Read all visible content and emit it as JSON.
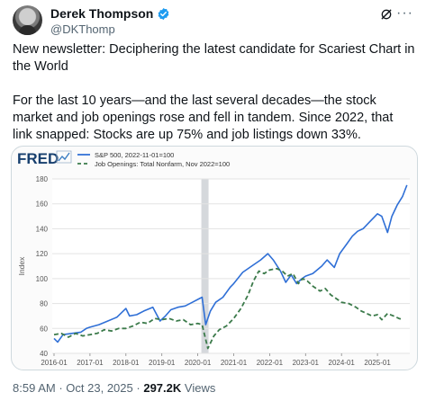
{
  "author": {
    "name": "Derek Thompson",
    "handle": "@DKThomp"
  },
  "tweet": {
    "paragraph1": "New newsletter: Deciphering the latest candidate for Scariest Chart in the World",
    "paragraph2": "For the last 10 years—and the last several decades—the stock market and job openings rose and fell in tandem. Since 2022, that link snapped: Stocks are up 75% and job listings down 33%."
  },
  "meta": {
    "time": "8:59 AM",
    "separator": "·",
    "date": "Oct 23, 2025",
    "views_count": "297.2K",
    "views_label": "Views"
  },
  "colors": {
    "verified": "#1d9bf0",
    "sp500": "#2f6fd6",
    "job_openings": "#3b7a4a",
    "recession": "#d5d8dc",
    "fred_text": "#173f6e"
  },
  "icons": {
    "verified": "verified-badge-icon",
    "grok": "grok-icon",
    "more": "more-icon",
    "fred_logo_chart": "fred-chart-icon"
  },
  "chart_data": {
    "type": "line",
    "brand": "FRED",
    "ylabel": "Index",
    "ylim": [
      40,
      180
    ],
    "yticks": [
      40,
      60,
      80,
      100,
      120,
      140,
      160,
      180
    ],
    "xticks": [
      "2016-01",
      "2017-01",
      "2018-01",
      "2019-01",
      "2020-01",
      "2021-01",
      "2022-01",
      "2023-01",
      "2024-01",
      "2025-01"
    ],
    "xlim": [
      2015.95,
      2025.9
    ],
    "recession": [
      2020.1,
      2020.3
    ],
    "grid": true,
    "legend_position": "top",
    "series": [
      {
        "name": "S&P 500, 2022-11-01=100",
        "style": "solid",
        "points": [
          [
            2016.0,
            52
          ],
          [
            2016.1,
            49
          ],
          [
            2016.25,
            55
          ],
          [
            2016.5,
            56
          ],
          [
            2016.75,
            57
          ],
          [
            2016.9,
            60
          ],
          [
            2017.0,
            61
          ],
          [
            2017.25,
            63
          ],
          [
            2017.5,
            66
          ],
          [
            2017.75,
            69
          ],
          [
            2018.0,
            76
          ],
          [
            2018.1,
            70
          ],
          [
            2018.3,
            71
          ],
          [
            2018.5,
            74
          ],
          [
            2018.75,
            77
          ],
          [
            2018.95,
            66
          ],
          [
            2019.1,
            70
          ],
          [
            2019.25,
            75
          ],
          [
            2019.45,
            77
          ],
          [
            2019.65,
            78
          ],
          [
            2019.85,
            81
          ],
          [
            2020.05,
            84
          ],
          [
            2020.12,
            85
          ],
          [
            2020.22,
            63
          ],
          [
            2020.35,
            74
          ],
          [
            2020.5,
            81
          ],
          [
            2020.7,
            85
          ],
          [
            2020.9,
            93
          ],
          [
            2021.0,
            96
          ],
          [
            2021.25,
            105
          ],
          [
            2021.5,
            110
          ],
          [
            2021.75,
            115
          ],
          [
            2021.95,
            120
          ],
          [
            2022.1,
            115
          ],
          [
            2022.3,
            106
          ],
          [
            2022.45,
            97
          ],
          [
            2022.6,
            103
          ],
          [
            2022.75,
            96
          ],
          [
            2022.9,
            100
          ],
          [
            2023.0,
            102
          ],
          [
            2023.2,
            104
          ],
          [
            2023.45,
            110
          ],
          [
            2023.6,
            115
          ],
          [
            2023.8,
            109
          ],
          [
            2023.95,
            120
          ],
          [
            2024.15,
            128
          ],
          [
            2024.3,
            134
          ],
          [
            2024.45,
            138
          ],
          [
            2024.6,
            140
          ],
          [
            2024.8,
            146
          ],
          [
            2025.0,
            152
          ],
          [
            2025.12,
            150
          ],
          [
            2025.28,
            137
          ],
          [
            2025.4,
            150
          ],
          [
            2025.55,
            159
          ],
          [
            2025.7,
            166
          ],
          [
            2025.82,
            175
          ]
        ]
      },
      {
        "name": "Job Openings: Total Nonfarm, Nov 2022=100",
        "style": "dashed",
        "points": [
          [
            2016.0,
            55
          ],
          [
            2016.2,
            56
          ],
          [
            2016.4,
            53
          ],
          [
            2016.6,
            56
          ],
          [
            2016.8,
            54
          ],
          [
            2017.0,
            55
          ],
          [
            2017.2,
            56
          ],
          [
            2017.4,
            59
          ],
          [
            2017.6,
            58
          ],
          [
            2017.8,
            60
          ],
          [
            2018.0,
            60
          ],
          [
            2018.2,
            62
          ],
          [
            2018.4,
            65
          ],
          [
            2018.6,
            64
          ],
          [
            2018.8,
            68
          ],
          [
            2019.0,
            67
          ],
          [
            2019.2,
            68
          ],
          [
            2019.4,
            66
          ],
          [
            2019.6,
            67
          ],
          [
            2019.8,
            63
          ],
          [
            2020.0,
            64
          ],
          [
            2020.12,
            63
          ],
          [
            2020.28,
            44
          ],
          [
            2020.45,
            54
          ],
          [
            2020.6,
            59
          ],
          [
            2020.8,
            62
          ],
          [
            2021.0,
            68
          ],
          [
            2021.2,
            76
          ],
          [
            2021.4,
            87
          ],
          [
            2021.55,
            98
          ],
          [
            2021.7,
            106
          ],
          [
            2021.85,
            104
          ],
          [
            2022.0,
            107
          ],
          [
            2022.2,
            108
          ],
          [
            2022.35,
            106
          ],
          [
            2022.5,
            102
          ],
          [
            2022.65,
            104
          ],
          [
            2022.8,
            96
          ],
          [
            2022.92,
            100
          ],
          [
            2023.05,
            98
          ],
          [
            2023.2,
            94
          ],
          [
            2023.4,
            90
          ],
          [
            2023.55,
            92
          ],
          [
            2023.7,
            87
          ],
          [
            2023.85,
            84
          ],
          [
            2024.0,
            81
          ],
          [
            2024.2,
            80
          ],
          [
            2024.4,
            77
          ],
          [
            2024.55,
            74
          ],
          [
            2024.7,
            72
          ],
          [
            2024.85,
            70
          ],
          [
            2025.0,
            71
          ],
          [
            2025.12,
            67
          ],
          [
            2025.28,
            72
          ],
          [
            2025.45,
            70
          ],
          [
            2025.6,
            68
          ],
          [
            2025.72,
            67
          ]
        ]
      }
    ]
  }
}
